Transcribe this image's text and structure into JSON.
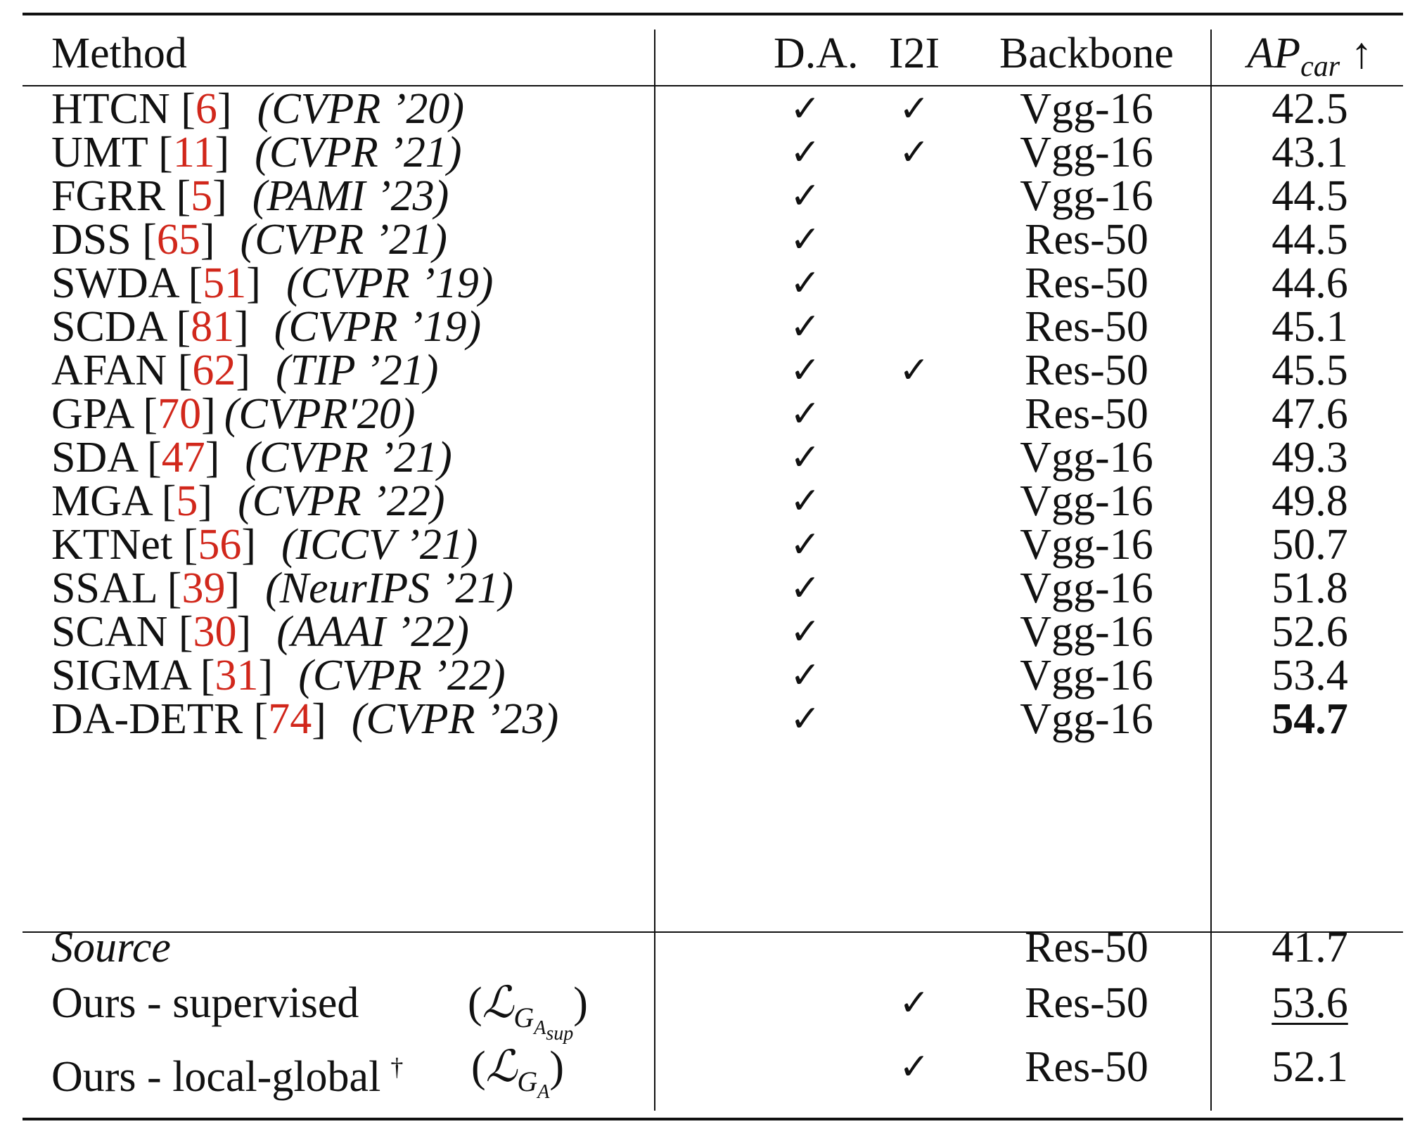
{
  "header": {
    "method": "Method",
    "da": "D.A.",
    "i2i": "I2I",
    "backbone": "Backbone",
    "ap_main": "AP",
    "ap_sub": "car",
    "ap_arrow": "↑"
  },
  "rows": [
    {
      "name": "HTCN [",
      "ref": "6",
      "close": "]",
      "venue": "(CVPR ’20)",
      "da": "✓",
      "i2i": "✓",
      "backbone": "Vgg-16",
      "ap": "42.5"
    },
    {
      "name": "UMT [",
      "ref": "11",
      "close": "]",
      "venue": "(CVPR ’21)",
      "da": "✓",
      "i2i": "✓",
      "backbone": "Vgg-16",
      "ap": "43.1"
    },
    {
      "name": "FGRR [",
      "ref": "5",
      "close": "]",
      "venue": "(PAMI ’23)",
      "da": "✓",
      "i2i": "",
      "backbone": "Vgg-16",
      "ap": "44.5"
    },
    {
      "name": "DSS [",
      "ref": "65",
      "close": "]",
      "venue": "(CVPR ’21)",
      "da": "✓",
      "i2i": "",
      "backbone": "Res-50",
      "ap": "44.5"
    },
    {
      "name": "SWDA [",
      "ref": "51",
      "close": "]",
      "venue": "(CVPR ’19)",
      "da": "✓",
      "i2i": "",
      "backbone": "Res-50",
      "ap": "44.6"
    },
    {
      "name": "SCDA [",
      "ref": "81",
      "close": "]",
      "venue": "(CVPR ’19)",
      "da": "✓",
      "i2i": "",
      "backbone": "Res-50",
      "ap": "45.1"
    },
    {
      "name": "AFAN [",
      "ref": "62",
      "close": "]",
      "venue": "(TIP ’21)",
      "da": "✓",
      "i2i": "✓",
      "backbone": "Res-50",
      "ap": "45.5"
    },
    {
      "name": "GPA [",
      "ref": "70",
      "close": "]",
      "venue": "(CVPR′20)",
      "da": "✓",
      "i2i": "",
      "backbone": "Res-50",
      "ap": "47.6"
    },
    {
      "name": "SDA [",
      "ref": "47",
      "close": "]",
      "venue": "(CVPR ’21)",
      "da": "✓",
      "i2i": "",
      "backbone": "Vgg-16",
      "ap": "49.3"
    },
    {
      "name": "MGA [",
      "ref": "5",
      "close": "]",
      "venue": "(CVPR ’22)",
      "da": "✓",
      "i2i": "",
      "backbone": "Vgg-16",
      "ap": "49.8"
    },
    {
      "name": "KTNet [",
      "ref": "56",
      "close": "]",
      "venue": "(ICCV ’21)",
      "da": "✓",
      "i2i": "",
      "backbone": "Vgg-16",
      "ap": "50.7"
    },
    {
      "name": "SSAL [",
      "ref": "39",
      "close": "]",
      "venue": "(NeurIPS ’21)",
      "da": "✓",
      "i2i": "",
      "backbone": "Vgg-16",
      "ap": "51.8"
    },
    {
      "name": "SCAN [",
      "ref": "30",
      "close": "]",
      "venue": "(AAAI ’22)",
      "da": "✓",
      "i2i": "",
      "backbone": "Vgg-16",
      "ap": "52.6"
    },
    {
      "name": "SIGMA [",
      "ref": "31",
      "close": "]",
      "venue": "(CVPR ’22)",
      "da": "✓",
      "i2i": "",
      "backbone": "Vgg-16",
      "ap": "53.4"
    },
    {
      "name": "DA-DETR [",
      "ref": "74",
      "close": "]",
      "venue": "(CVPR ’23)",
      "da": "✓",
      "i2i": "",
      "backbone": "Vgg-16",
      "ap": "54.7"
    }
  ],
  "ours": [
    {
      "name": "Source",
      "loss_open": "",
      "loss_script": "",
      "loss_sub": "",
      "loss_subsub": "",
      "loss_close": "",
      "dagger": "",
      "da": "",
      "i2i": "",
      "backbone": "Res-50",
      "ap": "41.7"
    },
    {
      "name": "Ours - supervised",
      "loss_open": "(",
      "loss_script": "ℒ",
      "loss_sub": "G",
      "loss_subsub": "A",
      "loss_subsubsub": "sup",
      "loss_close": ")",
      "dagger": "",
      "da": "",
      "i2i": "✓",
      "backbone": "Res-50",
      "ap": "53.6"
    },
    {
      "name": "Ours - local-global",
      "loss_open": "(",
      "loss_script": "ℒ",
      "loss_sub": "G",
      "loss_subsub": "A",
      "loss_subsubsub": "",
      "loss_close": ")",
      "dagger": "†",
      "da": "",
      "i2i": "✓",
      "backbone": "Res-50",
      "ap": "52.1"
    }
  ]
}
